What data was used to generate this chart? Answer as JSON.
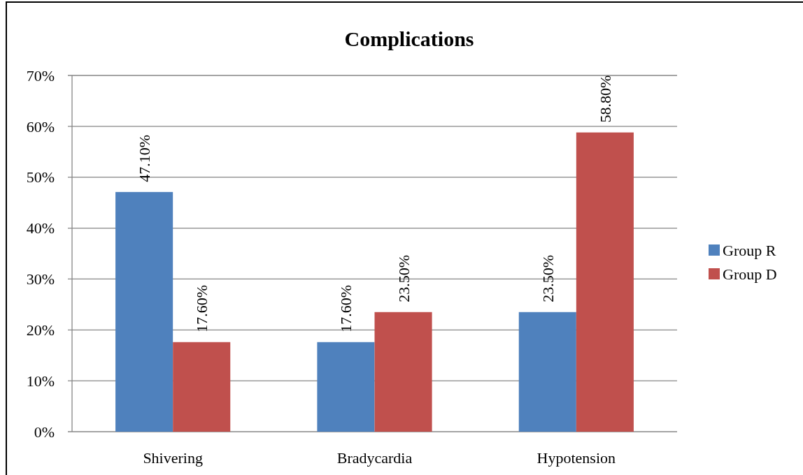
{
  "chart_data": {
    "type": "bar",
    "title": "Complications",
    "categories": [
      "Shivering",
      "Bradycardia",
      "Hypotension"
    ],
    "series": [
      {
        "name": "Group R",
        "color": "#4f81bd",
        "values": [
          47.1,
          17.6,
          23.5
        ],
        "value_labels": [
          "47.10%",
          "17.60%",
          "23.50%"
        ]
      },
      {
        "name": "Group D",
        "color": "#c0504d",
        "values": [
          17.6,
          23.5,
          58.8
        ],
        "value_labels": [
          "17.60%",
          "23.50%",
          "58.80%"
        ]
      }
    ],
    "ylim": [
      0,
      70
    ],
    "yticks": [
      {
        "value": 0,
        "label": "0%"
      },
      {
        "value": 10,
        "label": "10%"
      },
      {
        "value": 20,
        "label": "20%"
      },
      {
        "value": 30,
        "label": "30%"
      },
      {
        "value": 40,
        "label": "40%"
      },
      {
        "value": 50,
        "label": "50%"
      },
      {
        "value": 60,
        "label": "60%"
      },
      {
        "value": 70,
        "label": "70%"
      }
    ],
    "grid": "y",
    "legend": "right"
  }
}
